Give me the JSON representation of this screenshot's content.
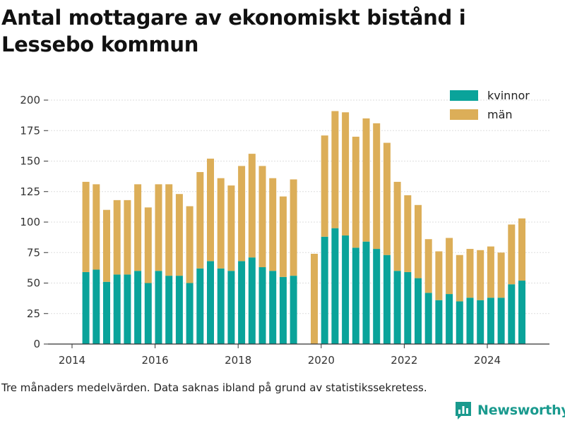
{
  "title": "Antal mottagare av ekonomiskt bistånd i Lessebo kommun",
  "caption": "Tre månaders medelvärden. Data saknas ibland på grund av statistikssekretess.",
  "brand": {
    "name": "Newsworthy",
    "icon": "bar-chart-logo-icon"
  },
  "colors": {
    "kvinnor": "#0aa39a",
    "man": "#dcae58",
    "axis": "#333333",
    "grid": "#dddddd",
    "brand": "#1a9a8e"
  },
  "chart_data": {
    "type": "bar",
    "stacked": true,
    "x_ticks": [
      "2014",
      "2016",
      "2018",
      "2020",
      "2022",
      "2024"
    ],
    "y_ticks": [
      "0",
      "25",
      "50",
      "75",
      "100",
      "125",
      "150",
      "175",
      "200"
    ],
    "ylim": [
      0,
      200
    ],
    "legend": {
      "position": "top-right"
    },
    "categories": [
      "2014-05",
      "2014-08",
      "2014-11",
      "2015-02",
      "2015-05",
      "2015-08",
      "2015-11",
      "2016-02",
      "2016-05",
      "2016-08",
      "2016-11",
      "2017-02",
      "2017-05",
      "2017-08",
      "2017-11",
      "2018-02",
      "2018-05",
      "2018-08",
      "2018-11",
      "2019-02",
      "2019-05",
      "2019-11",
      "2020-02",
      "2020-05",
      "2020-08",
      "2020-11",
      "2021-02",
      "2021-05",
      "2021-08",
      "2021-11",
      "2022-02",
      "2022-05",
      "2022-08",
      "2022-11",
      "2023-02",
      "2023-05",
      "2023-08",
      "2023-11",
      "2024-02",
      "2024-05",
      "2024-08",
      "2024-11"
    ],
    "series": [
      {
        "name": "kvinnor",
        "values": [
          59,
          61,
          51,
          57,
          57,
          60,
          50,
          60,
          56,
          56,
          50,
          62,
          68,
          62,
          60,
          68,
          71,
          63,
          60,
          55,
          56,
          0,
          88,
          95,
          89,
          79,
          84,
          78,
          73,
          60,
          59,
          54,
          42,
          36,
          41,
          35,
          38,
          36,
          38,
          38,
          49,
          52
        ]
      },
      {
        "name": "män",
        "values": [
          74,
          70,
          59,
          61,
          61,
          71,
          62,
          71,
          75,
          67,
          63,
          79,
          84,
          74,
          70,
          78,
          85,
          83,
          76,
          66,
          79,
          74,
          83,
          96,
          101,
          91,
          101,
          103,
          92,
          73,
          63,
          60,
          44,
          40,
          46,
          38,
          40,
          41,
          42,
          37,
          49,
          51
        ]
      }
    ]
  }
}
